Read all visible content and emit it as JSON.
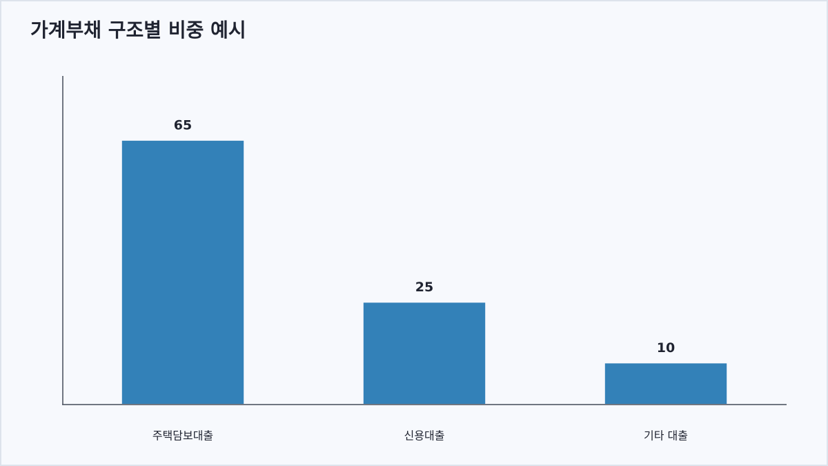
{
  "chart_data": {
    "type": "bar",
    "title": "가계부채 구조별 비중 예시",
    "categories": [
      "주택담보대출",
      "신용대출",
      "기타 대출"
    ],
    "values": [
      65,
      25,
      10
    ],
    "color": "#3381b8",
    "ylim": [
      0,
      81
    ]
  }
}
